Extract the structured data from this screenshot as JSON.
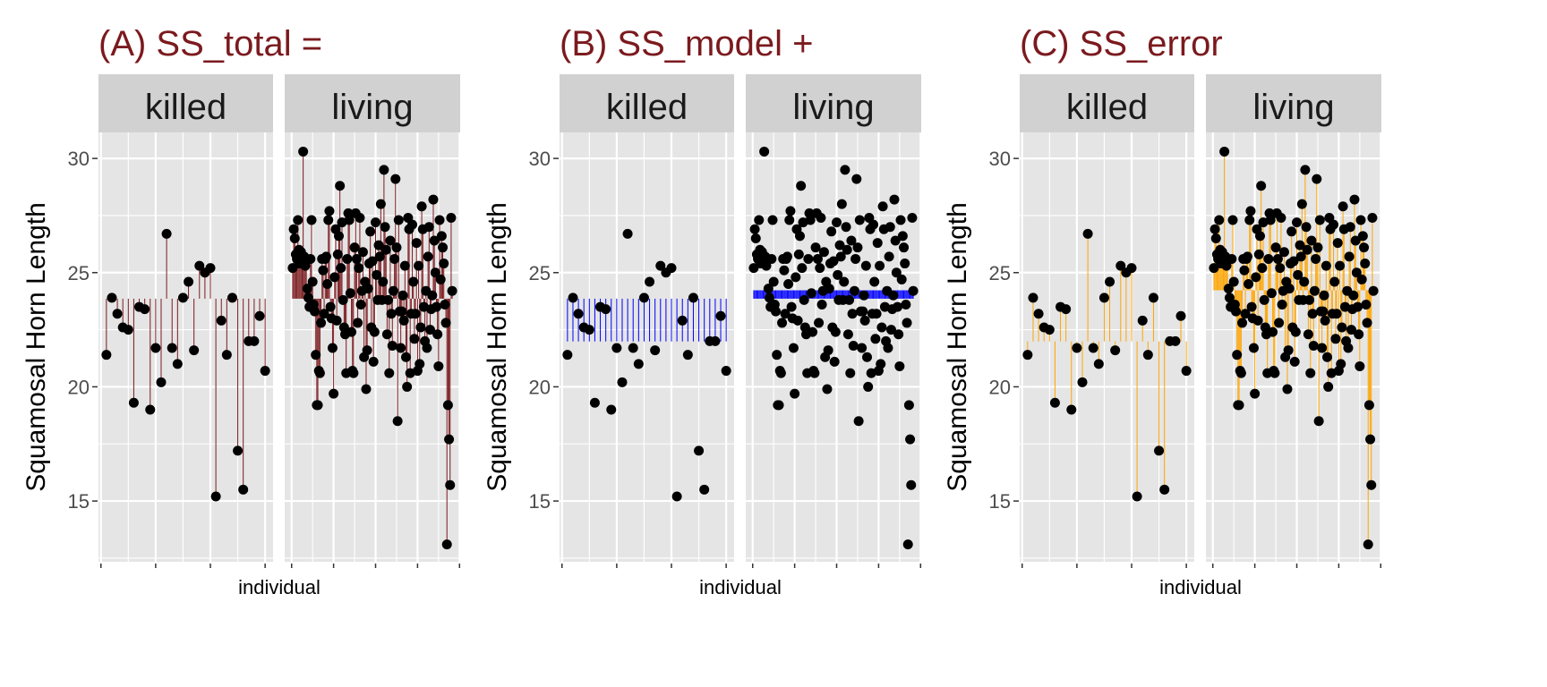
{
  "chart_data": [
    {
      "type": "scatter",
      "title": "(A) SS_total    =",
      "xlabel": "individual",
      "ylabel": "Squamosal Horn Length",
      "yticks": [
        "15",
        "20",
        "25",
        "30"
      ],
      "ylim": [
        12.34,
        31.14
      ],
      "facets": [
        "killed",
        "living"
      ],
      "segments": "point to grand mean",
      "segment_color": "#7B1A1E"
    },
    {
      "type": "scatter",
      "title": "(B)  SS_model    +",
      "xlabel": "individual",
      "ylabel": "Squamosal Horn Length",
      "yticks": [
        "15",
        "20",
        "25",
        "30"
      ],
      "ylim": [
        12.34,
        31.14
      ],
      "facets": [
        "killed",
        "living"
      ],
      "segments": "group mean to grand mean",
      "segment_color": "#0000FF"
    },
    {
      "type": "scatter",
      "title": "(C)  SS_error",
      "xlabel": "individual",
      "ylabel": "Squamosal Horn Length",
      "yticks": [
        "15",
        "20",
        "25",
        "30"
      ],
      "ylim": [
        12.34,
        31.14
      ],
      "facets": [
        "killed",
        "living"
      ],
      "segments": "point to group mean",
      "segment_color": "#FFA500"
    }
  ],
  "series": {
    "killed": [
      21.4,
      23.9,
      23.2,
      22.6,
      22.5,
      19.3,
      23.5,
      23.4,
      19.0,
      21.7,
      20.2,
      26.7,
      21.7,
      21.0,
      23.9,
      24.6,
      21.6,
      25.3,
      25.0,
      25.2,
      15.2,
      22.9,
      21.4,
      23.9,
      17.2,
      15.5,
      22.0,
      22.0,
      23.1,
      20.7
    ],
    "living": [
      25.2,
      26.9,
      26.5,
      25.8,
      25.6,
      27.3,
      26.0,
      25.4,
      25.9,
      25.5,
      30.3,
      25.7,
      25.3,
      25.6,
      24.3,
      23.9,
      23.5,
      25.6,
      27.3,
      24.6,
      23.6,
      23.3,
      21.4,
      19.2,
      19.2,
      20.7,
      20.6,
      22.8,
      25.6,
      25.1,
      23.2,
      25.6,
      25.7,
      24.5,
      27.3,
      27.7,
      23.5,
      23.0,
      21.7,
      19.7,
      24.8,
      26.9,
      22.9,
      25.8,
      26.6,
      28.8,
      25.2,
      27.2,
      23.8,
      22.6,
      22.3,
      20.6,
      25.6,
      27.6,
      27.3,
      24.1,
      22.4,
      20.7,
      20.6,
      26.1,
      27.6,
      25.6,
      22.8,
      25.2,
      27.4,
      23.6,
      24.2,
      25.9,
      21.3,
      24.6,
      19.9,
      21.6,
      24.3,
      25.4,
      26.8,
      22.6,
      25.5,
      21.1,
      22.4,
      27.2,
      24.9,
      23.8,
      26.2,
      25.7,
      28.0,
      23.8,
      24.6,
      29.5,
      27.0,
      26.0,
      22.3,
      23.8,
      20.6,
      26.4,
      23.2,
      21.8,
      24.2,
      25.6,
      29.1,
      26.1,
      18.5,
      27.3,
      23.3,
      21.7,
      23.3,
      24.0,
      22.9,
      25.3,
      21.3,
      20.0,
      27.4,
      26.9,
      20.6,
      23.2,
      27.1,
      24.6,
      22.1,
      23.2,
      26.3,
      20.7,
      25.3,
      21.0,
      22.6,
      27.9,
      26.9,
      23.5,
      22.0,
      24.2,
      21.7,
      25.7,
      27.0,
      22.5,
      23.4,
      24.0,
      28.2,
      26.4,
      25.0,
      23.5,
      22.3,
      20.9,
      27.3,
      24.7,
      26.6,
      26.1,
      25.4,
      23.6,
      22.8,
      13.1,
      19.2,
      17.7,
      15.7,
      27.4,
      24.2
    ]
  },
  "colors": {
    "title": "#7B1A1E",
    "panel": "#E5E5E5",
    "strip": "#D1D1D1",
    "grid": "#FFFFFF",
    "point": "#000000",
    "tick_label": "#4D4D4D"
  }
}
